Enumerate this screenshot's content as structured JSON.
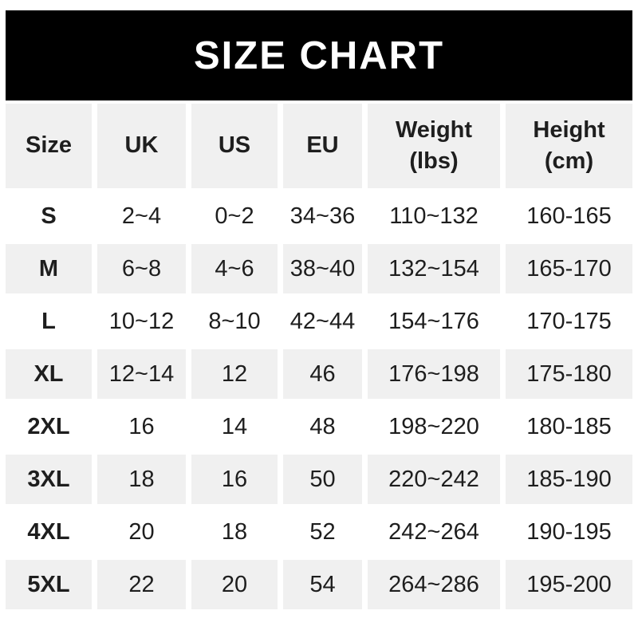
{
  "banner": {
    "title": "SIZE CHART"
  },
  "colors": {
    "banner_bg": "#000000",
    "banner_text": "#ffffff",
    "row_alt_bg": "#f0f0f0",
    "row_bg": "#ffffff",
    "text": "#1e1e1e"
  },
  "chart_data": {
    "type": "table",
    "title": "SIZE CHART",
    "columns": [
      [
        "Size"
      ],
      [
        "UK"
      ],
      [
        "US"
      ],
      [
        "EU"
      ],
      [
        "Weight",
        "(lbs)"
      ],
      [
        "Height",
        "(cm)"
      ]
    ],
    "rows": [
      [
        "S",
        "2~4",
        "0~2",
        "34~36",
        "110~132",
        "160-165"
      ],
      [
        "M",
        "6~8",
        "4~6",
        "38~40",
        "132~154",
        "165-170"
      ],
      [
        "L",
        "10~12",
        "8~10",
        "42~44",
        "154~176",
        "170-175"
      ],
      [
        "XL",
        "12~14",
        "12",
        "46",
        "176~198",
        "175-180"
      ],
      [
        "2XL",
        "16",
        "14",
        "48",
        "198~220",
        "180-185"
      ],
      [
        "3XL",
        "18",
        "16",
        "50",
        "220~242",
        "185-190"
      ],
      [
        "4XL",
        "20",
        "18",
        "52",
        "242~264",
        "190-195"
      ],
      [
        "5XL",
        "22",
        "20",
        "54",
        "264~286",
        "195-200"
      ]
    ]
  }
}
